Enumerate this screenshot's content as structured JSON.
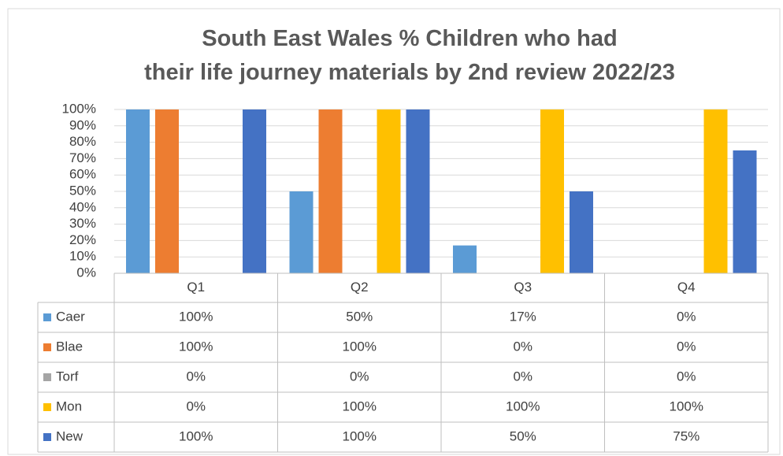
{
  "chart_data": {
    "type": "bar",
    "title": "South East Wales % Children who had their life journey materials by 2nd review 2022/23",
    "categories": [
      "Q1",
      "Q2",
      "Q3",
      "Q4"
    ],
    "series": [
      {
        "name": "Caer",
        "color": "#5b9bd5",
        "values": [
          100,
          50,
          17,
          0
        ],
        "value_labels": [
          "100%",
          "50%",
          "17%",
          "0%"
        ]
      },
      {
        "name": "Blae",
        "color": "#ed7d31",
        "values": [
          100,
          100,
          0,
          0
        ],
        "value_labels": [
          "100%",
          "100%",
          "0%",
          "0%"
        ]
      },
      {
        "name": "Torf",
        "color": "#a5a5a5",
        "values": [
          0,
          0,
          0,
          0
        ],
        "value_labels": [
          "0%",
          "0%",
          "0%",
          "0%"
        ]
      },
      {
        "name": "Mon",
        "color": "#ffc000",
        "values": [
          0,
          100,
          100,
          100
        ],
        "value_labels": [
          "0%",
          "100%",
          "100%",
          "100%"
        ]
      },
      {
        "name": "New",
        "color": "#4472c4",
        "values": [
          100,
          100,
          50,
          75
        ],
        "value_labels": [
          "100%",
          "100%",
          "50%",
          "75%"
        ]
      }
    ],
    "ylim": [
      0,
      100
    ],
    "yticks": [
      {
        "value": 0,
        "label": "0%"
      },
      {
        "value": 10,
        "label": "10%"
      },
      {
        "value": 20,
        "label": "20%"
      },
      {
        "value": 30,
        "label": "30%"
      },
      {
        "value": 40,
        "label": "40%"
      },
      {
        "value": 50,
        "label": "50%"
      },
      {
        "value": 60,
        "label": "60%"
      },
      {
        "value": 70,
        "label": "70%"
      },
      {
        "value": 80,
        "label": "80%"
      },
      {
        "value": 90,
        "label": "90%"
      },
      {
        "value": 100,
        "label": "100%"
      }
    ],
    "grid": true
  }
}
